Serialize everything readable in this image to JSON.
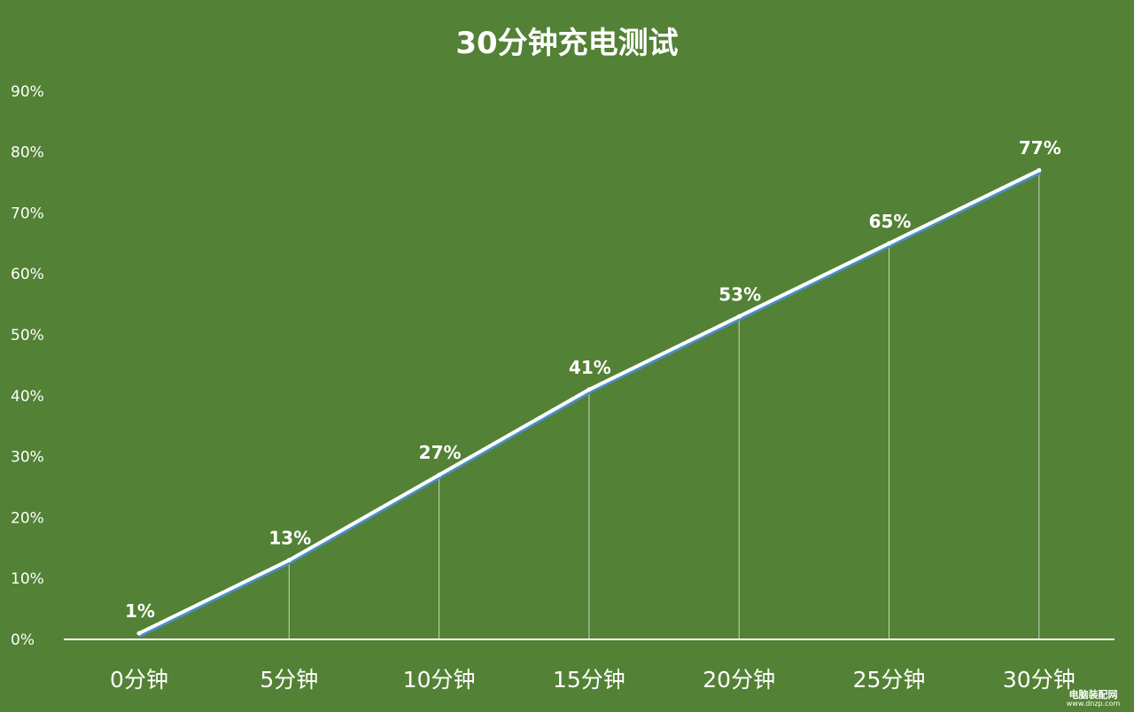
{
  "chart_data": {
    "type": "line",
    "title": "30分钟充电测试",
    "categories": [
      "0分钟",
      "5分钟",
      "10分钟",
      "15分钟",
      "20分钟",
      "25分钟",
      "30分钟"
    ],
    "series": [
      {
        "values": [
          1,
          13,
          27,
          41,
          53,
          65,
          77
        ],
        "data_labels": [
          "1%",
          "13%",
          "27%",
          "41%",
          "53%",
          "65%",
          "77%"
        ]
      }
    ],
    "yticks": [
      "0%",
      "10%",
      "20%",
      "30%",
      "40%",
      "50%",
      "60%",
      "70%",
      "80%",
      "90%"
    ],
    "ylim": [
      0,
      90
    ],
    "grid": false,
    "drop_lines": true,
    "colors": {
      "background": "#538135",
      "line": "#ffffff",
      "line_shadow": "#4a8fc8",
      "text": "#ffffff"
    }
  },
  "watermark": {
    "name": "电脑装配网",
    "url": "www.dnzp.com"
  }
}
